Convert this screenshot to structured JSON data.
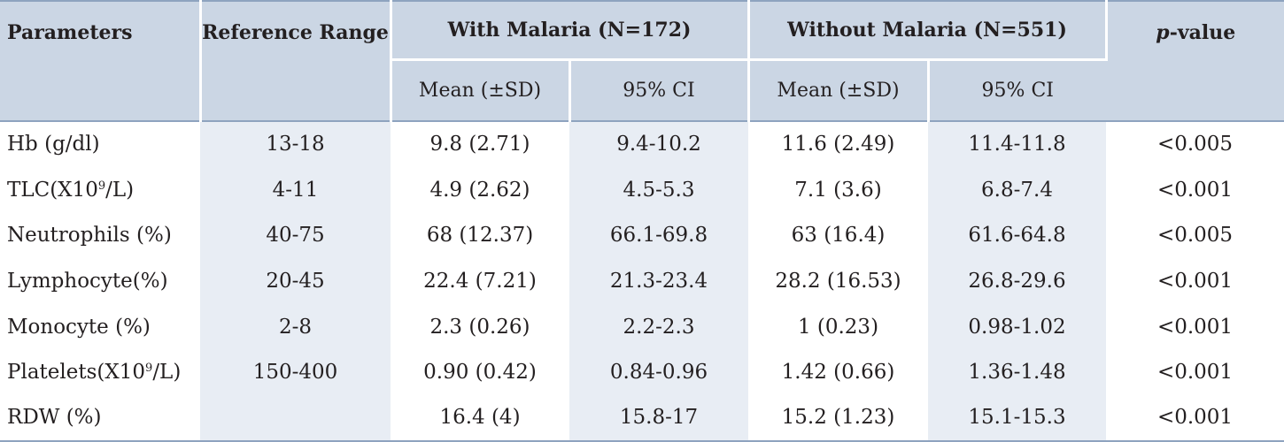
{
  "table": {
    "headers": {
      "parameters": "Parameters",
      "reference_range": "Reference Range",
      "with_malaria": "With Malaria (N=172)",
      "without_malaria": "Without Malaria (N=551)",
      "p_value_italic": "p",
      "p_value_rest": "-value",
      "mean_sd_1": "Mean (±SD)",
      "ci_1": "95% CI",
      "mean_sd_2": "Mean (±SD)",
      "ci_2": "95% CI"
    },
    "rows": [
      {
        "param": "Hb (g/dl)",
        "param_sup": "",
        "param_tail": "",
        "ref": "13-18",
        "wm_mean": "9.8 (2.71)",
        "wm_ci": "9.4-10.2",
        "wo_mean": "11.6 (2.49)",
        "wo_ci": "11.4-11.8",
        "p": "<0.005"
      },
      {
        "param": "TLC(X10",
        "param_sup": "9",
        "param_tail": "/L)",
        "ref": "4-11",
        "wm_mean": "4.9 (2.62)",
        "wm_ci": "4.5-5.3",
        "wo_mean": "7.1 (3.6)",
        "wo_ci": "6.8-7.4",
        "p": "<0.001"
      },
      {
        "param": "Neutrophils (%)",
        "param_sup": "",
        "param_tail": "",
        "ref": "40-75",
        "wm_mean": "68 (12.37)",
        "wm_ci": "66.1-69.8",
        "wo_mean": "63 (16.4)",
        "wo_ci": "61.6-64.8",
        "p": "<0.005"
      },
      {
        "param": "Lymphocyte(%)",
        "param_sup": "",
        "param_tail": "",
        "ref": "20-45",
        "wm_mean": "22.4 (7.21)",
        "wm_ci": "21.3-23.4",
        "wo_mean": "28.2 (16.53)",
        "wo_ci": "26.8-29.6",
        "p": "<0.001"
      },
      {
        "param": "Monocyte (%)",
        "param_sup": "",
        "param_tail": "",
        "ref": "2-8",
        "wm_mean": "2.3 (0.26)",
        "wm_ci": "2.2-2.3",
        "wo_mean": "1 (0.23)",
        "wo_ci": "0.98-1.02",
        "p": "<0.001"
      },
      {
        "param": "Platelets(X10",
        "param_sup": "9",
        "param_tail": "/L)",
        "ref": "150-400",
        "wm_mean": "0.90 (0.42)",
        "wm_ci": "0.84-0.96",
        "wo_mean": "1.42 (0.66)",
        "wo_ci": "1.36-1.48",
        "p": "<0.001"
      },
      {
        "param": "RDW (%)",
        "param_sup": "",
        "param_tail": "",
        "ref": "",
        "wm_mean": "16.4 (4)",
        "wm_ci": "15.8-17",
        "wo_mean": "15.2 (1.23)",
        "wo_ci": "15.1-15.3",
        "p": "<0.001"
      }
    ]
  }
}
